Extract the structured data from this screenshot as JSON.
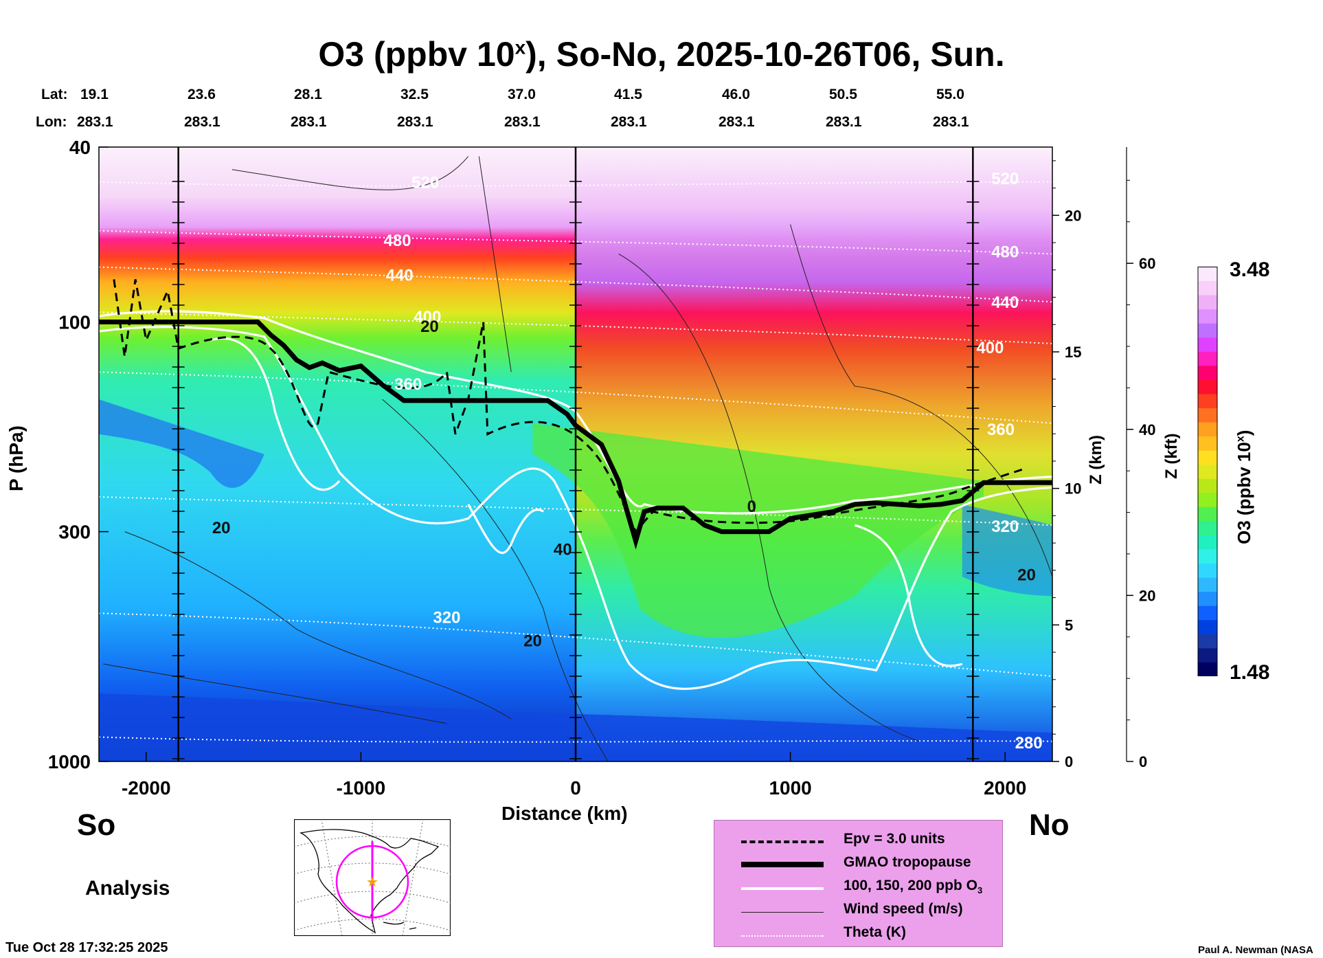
{
  "title_main": "O3 (ppbv 10",
  "title_sup": "x",
  "title_rest": "), So-No, 2025-10-26T06, Sun.",
  "header": {
    "lat_label": "Lat:",
    "lon_label": "Lon:",
    "lats": [
      "19.1",
      "23.6",
      "28.1",
      "32.5",
      "37.0",
      "41.5",
      "46.0",
      "50.5",
      "55.0"
    ],
    "lons": [
      "283.1",
      "283.1",
      "283.1",
      "283.1",
      "283.1",
      "283.1",
      "283.1",
      "283.1",
      "283.1"
    ]
  },
  "left_label": "So",
  "right_label": "No",
  "analysis_label": "Analysis",
  "footer_left": "Tue Oct 28 17:32:25 2025",
  "footer_right": "Paul A. Newman (NASA",
  "legend": {
    "epv": "Epv = 3.0 units",
    "tropopause": "GMAO tropopause",
    "o3": "100, 150, 200 ppb O",
    "o3_sub": "3",
    "wind": "Wind speed (m/s)",
    "theta": "Theta (K)"
  },
  "colorbar": {
    "label": "O3 (ppbv 10",
    "label_sup": "x",
    "label_end": ")",
    "max_label": "3.48",
    "min_label": "1.48",
    "colors": [
      "#000060",
      "#0a1a80",
      "#1a3aa8",
      "#0040e0",
      "#1060ff",
      "#2090ff",
      "#30b8ff",
      "#30d8ff",
      "#30f0e8",
      "#20f0c0",
      "#30f090",
      "#50f050",
      "#90f020",
      "#b8e818",
      "#e0e820",
      "#ffe020",
      "#ffc020",
      "#ffa020",
      "#ff7020",
      "#ff4020",
      "#ff1030",
      "#ff0070",
      "#ff20c0",
      "#e040ff",
      "#c070ff",
      "#e090ff",
      "#f0b0f8",
      "#f8d0f8",
      "#fce8fc"
    ]
  },
  "chart_data": {
    "type": "heatmap",
    "title": "O3 (ppbv 10x), So-No, 2025-10-26T06, Sun.",
    "xlabel": "Distance (km)",
    "ylabel": "P (hPa)",
    "y2label": "Z (km)",
    "y3label": "Z (kft)",
    "xlim": [
      -2220,
      2220
    ],
    "ylim": [
      1000,
      40
    ],
    "yscale": "log",
    "x_ticks": [
      -2000,
      -1000,
      0,
      1000,
      2000
    ],
    "x_tick_labels": [
      "-2000",
      "-1000",
      "0",
      "1000",
      "2000"
    ],
    "y_ticks": [
      40,
      100,
      300,
      1000
    ],
    "y_tick_labels": [
      "40",
      "100",
      "300",
      "1000"
    ],
    "z_km_ticks": [
      0,
      5,
      10,
      15,
      20
    ],
    "z_km_tick_labels": [
      "0",
      "5",
      "10",
      "15",
      "20"
    ],
    "z_kft_ticks": [
      0,
      20,
      40,
      60
    ],
    "z_kft_tick_labels": [
      "0",
      "20",
      "40",
      "60"
    ],
    "colorbar_range": [
      1.48,
      3.48
    ],
    "vertical_markers_km": [
      -1850,
      0,
      1850
    ],
    "tropopause": {
      "x": [
        -2220,
        -1480,
        -1420,
        -1360,
        -1300,
        -1240,
        -1180,
        -1100,
        -1000,
        -900,
        -800,
        -600,
        -400,
        -130,
        -40,
        0,
        120,
        200,
        240,
        280,
        320,
        380,
        500,
        600,
        680,
        800,
        900,
        1000,
        1100,
        1200,
        1300,
        1400,
        1500,
        1600,
        1700,
        1800,
        1900,
        2000,
        2220
      ],
      "p": [
        100,
        100,
        107,
        113,
        122,
        127,
        124,
        129,
        126,
        139,
        151,
        151,
        151,
        151,
        162,
        172,
        190,
        230,
        270,
        315,
        270,
        265,
        265,
        290,
        300,
        300,
        300,
        280,
        275,
        270,
        260,
        258,
        260,
        262,
        260,
        255,
        232,
        232,
        232
      ]
    },
    "theta_labels": [
      {
        "text": "520",
        "x": -700,
        "p": 48
      },
      {
        "text": "520",
        "x": 2000,
        "p": 47
      },
      {
        "text": "480",
        "x": -830,
        "p": 65
      },
      {
        "text": "480",
        "x": 2000,
        "p": 69
      },
      {
        "text": "440",
        "x": -820,
        "p": 78
      },
      {
        "text": "440",
        "x": 2000,
        "p": 90
      },
      {
        "text": "400",
        "x": -690,
        "p": 97
      },
      {
        "text": "400",
        "x": 1930,
        "p": 114
      },
      {
        "text": "360",
        "x": -780,
        "p": 138
      },
      {
        "text": "360",
        "x": 1980,
        "p": 175
      },
      {
        "text": "320",
        "x": -600,
        "p": 469
      },
      {
        "text": "320",
        "x": 2000,
        "p": 291
      },
      {
        "text": "280",
        "x": 2110,
        "p": 904
      }
    ],
    "wind_labels": [
      {
        "text": "20",
        "x": -680,
        "p": 102
      },
      {
        "text": "20",
        "x": -1650,
        "p": 293
      },
      {
        "text": "40",
        "x": -60,
        "p": 328
      },
      {
        "text": "20",
        "x": -200,
        "p": 530
      },
      {
        "text": "20",
        "x": 2100,
        "p": 375
      },
      {
        "text": "0",
        "x": 820,
        "p": 262
      }
    ]
  }
}
